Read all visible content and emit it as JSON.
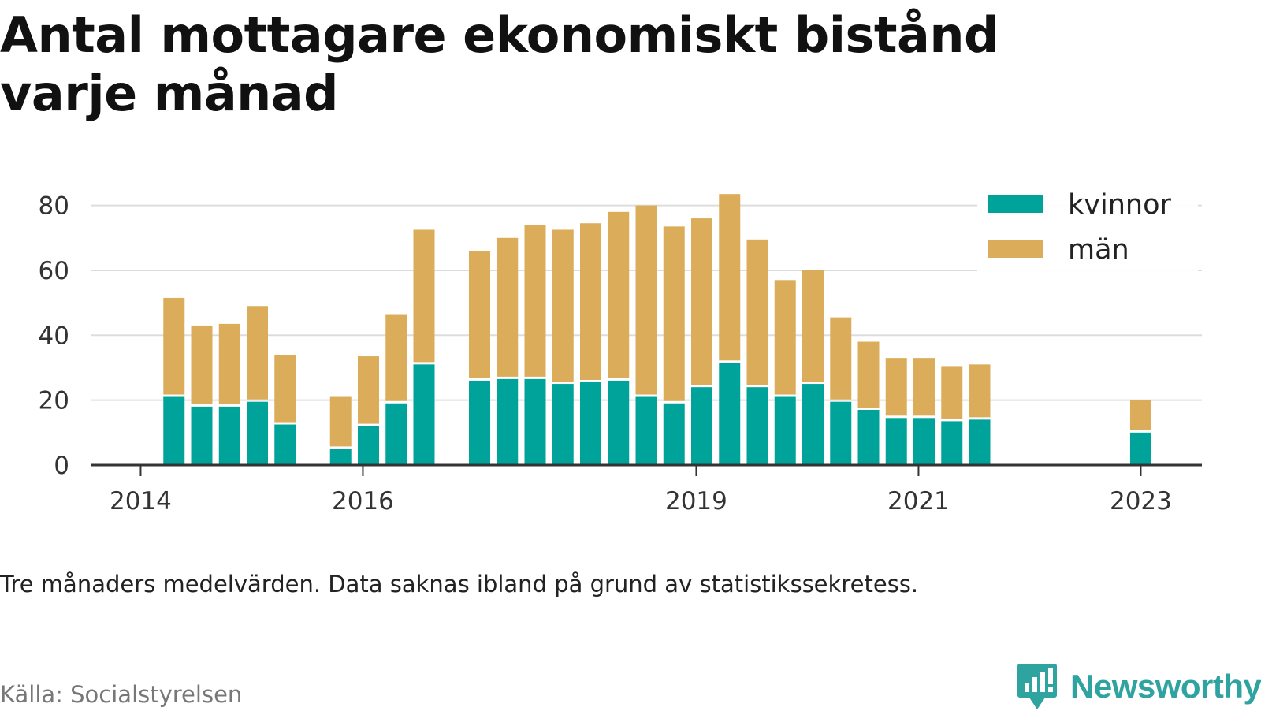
{
  "title": "Antal mottagare ekonomiskt bistånd varje månad",
  "note": "Tre månaders medelvärden. Data saknas ibland på grund av statistikssekretess.",
  "source": "Källa: Socialstyrelsen",
  "brand": {
    "name": "Newsworthy",
    "icon": "newsworthy-logo-icon"
  },
  "colors": {
    "kvinnor": "#00a39a",
    "man": "#dbad5a",
    "axis": "#333333",
    "grid": "#dddddd",
    "brand": "#2ea3a0"
  },
  "chart_data": {
    "type": "bar",
    "stacked": true,
    "x_unit": "year",
    "xlim": [
      2013.55,
      2023.55
    ],
    "ylim": [
      0,
      85
    ],
    "yticks": [
      0,
      20,
      40,
      60,
      80
    ],
    "xticks": [
      2014,
      2016,
      2019,
      2021,
      2023
    ],
    "grid": true,
    "legend_position": "top-right",
    "x": [
      2014.3,
      2014.55,
      2014.8,
      2015.05,
      2015.3,
      2015.8,
      2016.05,
      2016.3,
      2016.55,
      2017.05,
      2017.3,
      2017.55,
      2017.8,
      2018.05,
      2018.3,
      2018.55,
      2018.8,
      2019.05,
      2019.3,
      2019.55,
      2019.8,
      2020.05,
      2020.3,
      2020.55,
      2020.8,
      2021.05,
      2021.3,
      2021.55,
      2023.0
    ],
    "series": [
      {
        "name": "kvinnor",
        "values": [
          21,
          18,
          18,
          19.5,
          12.5,
          5,
          12,
          19,
          31,
          26,
          26.5,
          26.5,
          25,
          25.5,
          26,
          21,
          19,
          24,
          31.5,
          24,
          21,
          25,
          19.5,
          17,
          14.5,
          14.5,
          13.5,
          14,
          10
        ]
      },
      {
        "name": "män",
        "values": [
          30.5,
          25,
          25.5,
          29.5,
          21.5,
          16,
          21.5,
          27.5,
          41.5,
          40,
          43.5,
          47.5,
          47.5,
          49,
          52,
          59,
          54.5,
          52,
          52,
          45.5,
          36,
          35,
          26,
          21,
          18.5,
          18.5,
          17,
          17,
          10
        ]
      }
    ]
  }
}
